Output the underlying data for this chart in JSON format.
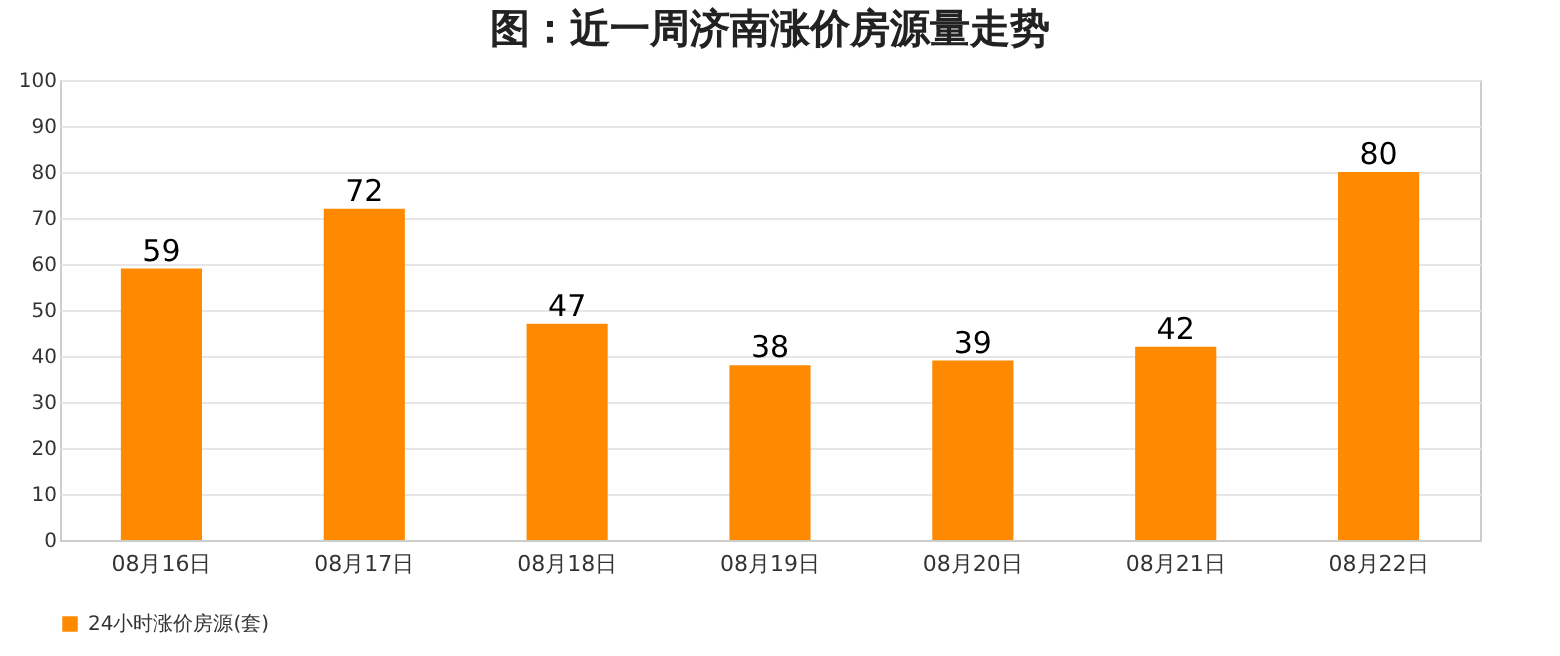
{
  "chart_data": {
    "type": "bar",
    "title": "图：近一周济南涨价房源量走势",
    "categories": [
      "08月16日",
      "08月17日",
      "08月18日",
      "08月19日",
      "08月20日",
      "08月21日",
      "08月22日"
    ],
    "series": [
      {
        "name": "24小时涨价房源(套)",
        "color": "#ff8a00",
        "values": [
          59,
          72,
          47,
          38,
          39,
          42,
          80
        ]
      }
    ],
    "ylim": [
      0,
      100
    ],
    "yticks": [
      0,
      10,
      20,
      30,
      40,
      50,
      60,
      70,
      80,
      90,
      100
    ],
    "grid": "y",
    "legend": "bottom",
    "data_labels": true
  }
}
